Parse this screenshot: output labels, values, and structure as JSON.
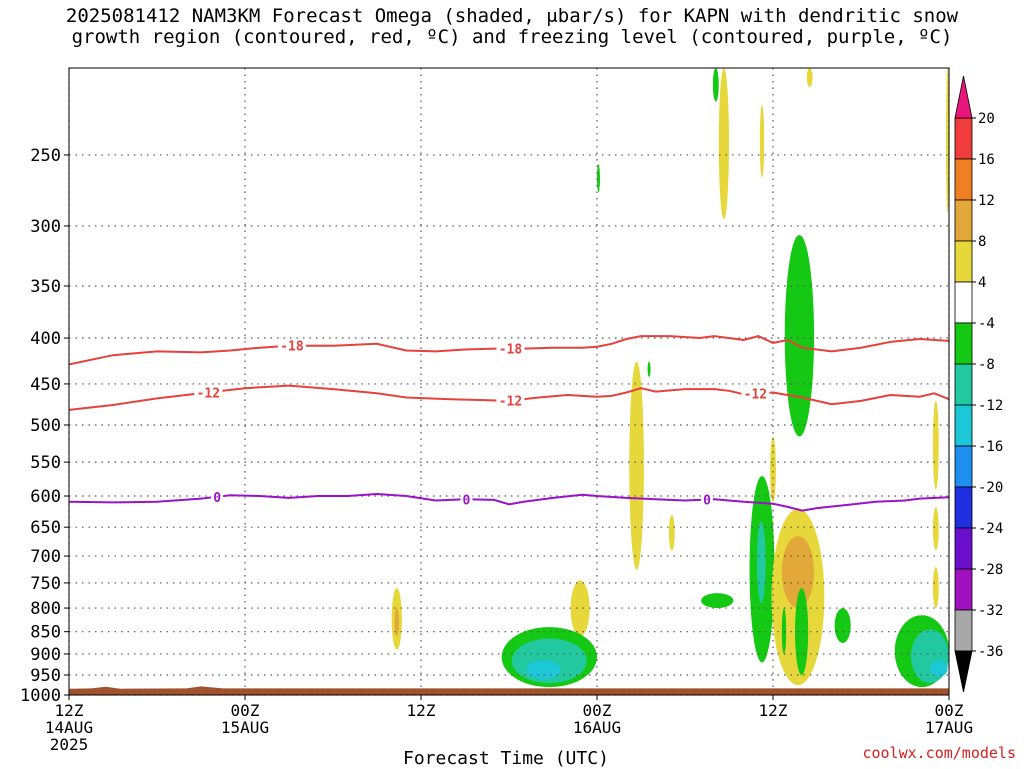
{
  "title": {
    "line1": "2025081412 NAM3KM Forecast Omega (shaded, μbar/s) for KAPN with dendritic snow",
    "line2": "growth region (contoured, red, ºC) and freezing level (contoured, purple, ºC)"
  },
  "credit": "coolwx.com/models",
  "colors": {
    "dendritic_contour": "#e8403a",
    "freezing_contour": "#9a12c8",
    "terrain": "#a0522d",
    "grid": "#555555"
  },
  "chart_data": {
    "type": "heatmap",
    "title": "2025081412 NAM3KM Forecast Omega (shaded, μbar/s) for KAPN with dendritic snow growth region (contoured, red, ºC) and freezing level (contoured, purple, ºC)",
    "xlabel": "Forecast Time (UTC)",
    "ylabel": "",
    "x_unit": "hours",
    "xlim": [
      0,
      60
    ],
    "ylim": [
      1000,
      200
    ],
    "y_scale": "log",
    "grid": true,
    "x_ticks": [
      {
        "hour": 0,
        "label": "12Z",
        "sub1": "14AUG",
        "sub2": "2025"
      },
      {
        "hour": 12,
        "label": "00Z",
        "sub1": "15AUG",
        "sub2": ""
      },
      {
        "hour": 24,
        "label": "12Z",
        "sub1": "",
        "sub2": ""
      },
      {
        "hour": 36,
        "label": "00Z",
        "sub1": "16AUG",
        "sub2": ""
      },
      {
        "hour": 48,
        "label": "12Z",
        "sub1": "",
        "sub2": ""
      },
      {
        "hour": 60,
        "label": "00Z",
        "sub1": "17AUG",
        "sub2": ""
      }
    ],
    "y_ticks": [
      {
        "value": 250,
        "label": "250"
      },
      {
        "value": 300,
        "label": "300"
      },
      {
        "value": 350,
        "label": "350"
      },
      {
        "value": 400,
        "label": "400"
      },
      {
        "value": 450,
        "label": "450"
      },
      {
        "value": 500,
        "label": "500"
      },
      {
        "value": 550,
        "label": "550"
      },
      {
        "value": 600,
        "label": "600"
      },
      {
        "value": 650,
        "label": "650"
      },
      {
        "value": 700,
        "label": "700"
      },
      {
        "value": 750,
        "label": "750"
      },
      {
        "value": 800,
        "label": "800"
      },
      {
        "value": 850,
        "label": "850"
      },
      {
        "value": 900,
        "label": "900"
      },
      {
        "value": 950,
        "label": "950"
      },
      {
        "value": 1000,
        "label": "1000"
      }
    ],
    "colorbar": {
      "ticks": [
        "20",
        "16",
        "12",
        "8",
        "4",
        "-4",
        "-8",
        "-12",
        "-16",
        "-20",
        "-24",
        "-28",
        "-32",
        "-36"
      ],
      "bins": [
        {
          "from": 16,
          "to": 20,
          "color": "#f03c3c"
        },
        {
          "from": 12,
          "to": 16,
          "color": "#ef7f22"
        },
        {
          "from": 8,
          "to": 12,
          "color": "#e2a93a"
        },
        {
          "from": 4,
          "to": 8,
          "color": "#e6d83a"
        },
        {
          "from": -4,
          "to": 4,
          "color": "#ffffff"
        },
        {
          "from": -8,
          "to": -4,
          "color": "#14c814"
        },
        {
          "from": -12,
          "to": -8,
          "color": "#22c9a0"
        },
        {
          "from": -16,
          "to": -12,
          "color": "#1cc8d8"
        },
        {
          "from": -20,
          "to": -16,
          "color": "#1d90f0"
        },
        {
          "from": -24,
          "to": -20,
          "color": "#2030e0"
        },
        {
          "from": -28,
          "to": -24,
          "color": "#6a10cc"
        },
        {
          "from": -32,
          "to": -28,
          "color": "#a010c0"
        },
        {
          "from": -36,
          "to": -32,
          "color": "#a8a8a8"
        }
      ],
      "over_color": "#e8157a",
      "under_color": "#000000"
    },
    "contours": [
      {
        "label": "-18",
        "color_key": "dendritic_contour",
        "label_hours": [
          15.2,
          30.1
        ],
        "points": [
          [
            0,
            428
          ],
          [
            3,
            418
          ],
          [
            6,
            414
          ],
          [
            9,
            415
          ],
          [
            11,
            413
          ],
          [
            13,
            410
          ],
          [
            15,
            408
          ],
          [
            18,
            408
          ],
          [
            21,
            406
          ],
          [
            23,
            413
          ],
          [
            25,
            414
          ],
          [
            27,
            412
          ],
          [
            29,
            411
          ],
          [
            31,
            411
          ],
          [
            33,
            410
          ],
          [
            35,
            410
          ],
          [
            36,
            409
          ],
          [
            37,
            406
          ],
          [
            38,
            401
          ],
          [
            39,
            398
          ],
          [
            41,
            398
          ],
          [
            43,
            400
          ],
          [
            44,
            398
          ],
          [
            46,
            402
          ],
          [
            47,
            398
          ],
          [
            48,
            405
          ],
          [
            49,
            402
          ],
          [
            50,
            410
          ],
          [
            52,
            414
          ],
          [
            54,
            410
          ],
          [
            56,
            404
          ],
          [
            58,
            401
          ],
          [
            60,
            403
          ]
        ]
      },
      {
        "label": "-12",
        "color_key": "dendritic_contour",
        "label_hours": [
          9.5,
          30.1,
          46.8
        ],
        "points": [
          [
            0,
            481
          ],
          [
            3,
            475
          ],
          [
            6,
            467
          ],
          [
            9,
            461
          ],
          [
            12,
            455
          ],
          [
            15,
            452
          ],
          [
            18,
            456
          ],
          [
            21,
            461
          ],
          [
            23,
            466
          ],
          [
            26,
            468
          ],
          [
            28,
            469
          ],
          [
            30,
            470
          ],
          [
            32,
            466
          ],
          [
            34,
            463
          ],
          [
            36,
            465
          ],
          [
            37,
            464
          ],
          [
            38,
            460
          ],
          [
            39,
            455
          ],
          [
            40,
            459
          ],
          [
            42,
            456
          ],
          [
            44,
            456
          ],
          [
            45,
            458
          ],
          [
            46,
            462
          ],
          [
            48,
            460
          ],
          [
            50,
            466
          ],
          [
            52,
            474
          ],
          [
            54,
            470
          ],
          [
            56,
            463
          ],
          [
            58,
            465
          ],
          [
            59,
            461
          ],
          [
            60,
            468
          ]
        ]
      },
      {
        "label": "0",
        "color_key": "freezing_contour",
        "label_hours": [
          10.1,
          27.1,
          43.5
        ],
        "points": [
          [
            0,
            609
          ],
          [
            3,
            610
          ],
          [
            6,
            609
          ],
          [
            9,
            604
          ],
          [
            11,
            599
          ],
          [
            13,
            600
          ],
          [
            15,
            603
          ],
          [
            17,
            600
          ],
          [
            19,
            600
          ],
          [
            21,
            597
          ],
          [
            23,
            600
          ],
          [
            25,
            607
          ],
          [
            27,
            605
          ],
          [
            29,
            606
          ],
          [
            30,
            613
          ],
          [
            31,
            609
          ],
          [
            33,
            603
          ],
          [
            35,
            598
          ],
          [
            36,
            600
          ],
          [
            38,
            603
          ],
          [
            40,
            605
          ],
          [
            42,
            607
          ],
          [
            44,
            605
          ],
          [
            46,
            609
          ],
          [
            48,
            612
          ],
          [
            49,
            617
          ],
          [
            50,
            623
          ],
          [
            51,
            619
          ],
          [
            53,
            614
          ],
          [
            55,
            609
          ],
          [
            57,
            607
          ],
          [
            58,
            604
          ],
          [
            60,
            602
          ]
        ]
      }
    ],
    "regions": [
      {
        "bin": "4 to 8",
        "t_range": [
          44.3,
          45.0
        ],
        "p_range": [
          200,
          295
        ]
      },
      {
        "bin": "4 to 8",
        "t_range": [
          47.1,
          47.4
        ],
        "p_range": [
          220,
          265
        ]
      },
      {
        "bin": "4 to 8",
        "t_range": [
          50.3,
          50.7
        ],
        "p_range": [
          200,
          210
        ]
      },
      {
        "bin": "4 to 8",
        "t_range": [
          59.8,
          60.0
        ],
        "p_range": [
          200,
          290
        ]
      },
      {
        "bin": "-8 to -4",
        "t_range": [
          43.9,
          44.3
        ],
        "p_range": [
          200,
          218
        ]
      },
      {
        "bin": "-8 to -4",
        "t_range": [
          36.0,
          36.2
        ],
        "p_range": [
          256,
          275
        ]
      },
      {
        "bin": "-8 to -4",
        "t_range": [
          48.8,
          50.8
        ],
        "p_range": [
          307,
          515
        ]
      },
      {
        "bin": "-8 to -4",
        "t_range": [
          39.5,
          39.6
        ],
        "p_range": [
          425,
          442
        ]
      },
      {
        "bin": "4 to 8",
        "t_range": [
          38.2,
          39.2
        ],
        "p_range": [
          425,
          725
        ]
      },
      {
        "bin": "4 to 8",
        "t_range": [
          40.9,
          41.3
        ],
        "p_range": [
          630,
          690
        ]
      },
      {
        "bin": "4 to 8",
        "t_range": [
          47.8,
          48.2
        ],
        "p_range": [
          515,
          610
        ]
      },
      {
        "bin": "4 to 8",
        "t_range": [
          58.9,
          59.3
        ],
        "p_range": [
          470,
          590
        ]
      },
      {
        "bin": "4 to 8",
        "t_range": [
          58.9,
          59.3
        ],
        "p_range": [
          618,
          690
        ]
      },
      {
        "bin": "4 to 8",
        "t_range": [
          58.9,
          59.3
        ],
        "p_range": [
          720,
          800
        ]
      },
      {
        "bin": "4 to 8",
        "t_range": [
          22.0,
          22.7
        ],
        "p_range": [
          760,
          890
        ]
      },
      {
        "bin": "8 to 12",
        "t_range": [
          22.2,
          22.5
        ],
        "p_range": [
          800,
          860
        ]
      },
      {
        "bin": "4 to 8",
        "t_range": [
          34.2,
          35.5
        ],
        "p_range": [
          745,
          860
        ]
      },
      {
        "bin": "-8 to -4",
        "t_range": [
          43.1,
          45.3
        ],
        "p_range": [
          770,
          800
        ]
      },
      {
        "bin": "-8 to -4",
        "t_range": [
          46.4,
          48.1
        ],
        "p_range": [
          570,
          920
        ]
      },
      {
        "bin": "-12 to -8",
        "t_range": [
          46.9,
          47.5
        ],
        "p_range": [
          640,
          790
        ]
      },
      {
        "bin": "4 to 8",
        "t_range": [
          47.9,
          51.5
        ],
        "p_range": [
          620,
          975
        ]
      },
      {
        "bin": "8 to 12",
        "t_range": [
          48.6,
          50.8
        ],
        "p_range": [
          665,
          800
        ]
      },
      {
        "bin": "-8 to -4",
        "t_range": [
          49.5,
          50.4
        ],
        "p_range": [
          760,
          950
        ]
      },
      {
        "bin": "-8 to -4",
        "t_range": [
          48.6,
          48.9
        ],
        "p_range": [
          800,
          900
        ]
      },
      {
        "bin": "-8 to -4",
        "t_range": [
          52.2,
          53.3
        ],
        "p_range": [
          800,
          875
        ]
      },
      {
        "bin": "-8 to -4",
        "t_range": [
          29.5,
          36.0
        ],
        "p_range": [
          840,
          980
        ]
      },
      {
        "bin": "-12 to -8",
        "t_range": [
          30.2,
          35.3
        ],
        "p_range": [
          865,
          970
        ]
      },
      {
        "bin": "-16 to -12",
        "t_range": [
          31.2,
          33.5
        ],
        "p_range": [
          915,
          960
        ]
      },
      {
        "bin": "-8 to -4",
        "t_range": [
          56.3,
          60.0
        ],
        "p_range": [
          815,
          980
        ]
      },
      {
        "bin": "-12 to -8",
        "t_range": [
          57.4,
          60.0
        ],
        "p_range": [
          845,
          970
        ]
      },
      {
        "bin": "-16 to -12",
        "t_range": [
          58.7,
          59.9
        ],
        "p_range": [
          915,
          955
        ]
      }
    ],
    "terrain": {
      "color_key": "terrain",
      "points": [
        [
          0,
          984
        ],
        [
          1.5,
          983
        ],
        [
          2.5,
          979
        ],
        [
          3.5,
          984
        ],
        [
          8,
          983
        ],
        [
          9,
          978
        ],
        [
          10.5,
          983
        ],
        [
          60,
          983
        ]
      ]
    }
  }
}
